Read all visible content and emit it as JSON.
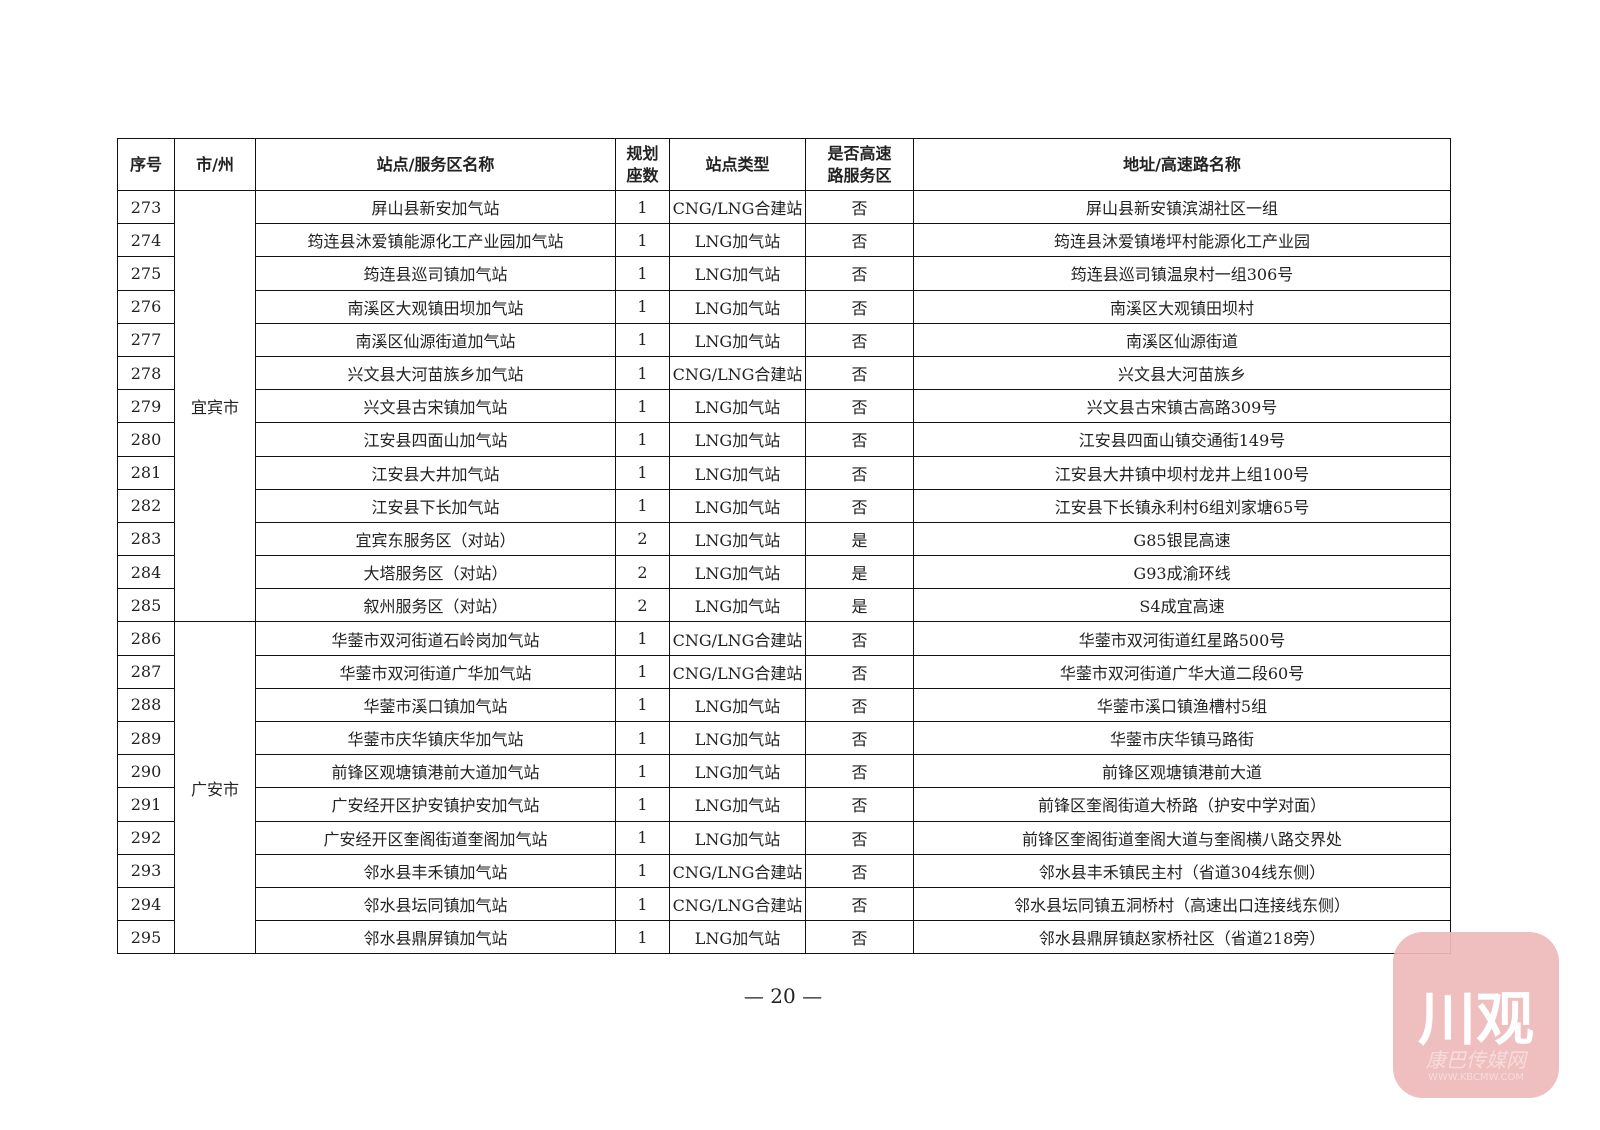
{
  "headers": [
    "序号",
    "市/州",
    "站点/服务区名称",
    "规划座数",
    "站点类型",
    "是否高速路服务区",
    "地址/高速路名称"
  ],
  "header_lines": {
    "seats": [
      "规划",
      "座数"
    ],
    "highway": [
      "是否高速",
      "路服务区"
    ]
  },
  "groups": [
    {
      "city": "宜宾市",
      "rows": [
        [
          "273",
          "屏山县新安加气站",
          "1",
          "CNG/LNG合建站",
          "否",
          "屏山县新安镇滨湖社区一组"
        ],
        [
          "274",
          "筠连县沐爱镇能源化工产业园加气站",
          "1",
          "LNG加气站",
          "否",
          "筠连县沐爱镇埢坪村能源化工产业园"
        ],
        [
          "275",
          "筠连县巡司镇加气站",
          "1",
          "LNG加气站",
          "否",
          "筠连县巡司镇温泉村一组306号"
        ],
        [
          "276",
          "南溪区大观镇田坝加气站",
          "1",
          "LNG加气站",
          "否",
          "南溪区大观镇田坝村"
        ],
        [
          "277",
          "南溪区仙源街道加气站",
          "1",
          "LNG加气站",
          "否",
          "南溪区仙源街道"
        ],
        [
          "278",
          "兴文县大河苗族乡加气站",
          "1",
          "CNG/LNG合建站",
          "否",
          "兴文县大河苗族乡"
        ],
        [
          "279",
          "兴文县古宋镇加气站",
          "1",
          "LNG加气站",
          "否",
          "兴文县古宋镇古高路309号"
        ],
        [
          "280",
          "江安县四面山加气站",
          "1",
          "LNG加气站",
          "否",
          "江安县四面山镇交通街149号"
        ],
        [
          "281",
          "江安县大井加气站",
          "1",
          "LNG加气站",
          "否",
          "江安县大井镇中坝村龙井上组100号"
        ],
        [
          "282",
          "江安县下长加气站",
          "1",
          "LNG加气站",
          "否",
          "江安县下长镇永利村6组刘家塘65号"
        ],
        [
          "283",
          "宜宾东服务区（对站）",
          "2",
          "LNG加气站",
          "是",
          "G85银昆高速"
        ],
        [
          "284",
          "大塔服务区（对站）",
          "2",
          "LNG加气站",
          "是",
          "G93成渝环线"
        ],
        [
          "285",
          "叙州服务区（对站）",
          "2",
          "LNG加气站",
          "是",
          "S4成宜高速"
        ]
      ]
    },
    {
      "city": "广安市",
      "rows": [
        [
          "286",
          "华蓥市双河街道石岭岗加气站",
          "1",
          "CNG/LNG合建站",
          "否",
          "华蓥市双河街道红星路500号"
        ],
        [
          "287",
          "华蓥市双河街道广华加气站",
          "1",
          "CNG/LNG合建站",
          "否",
          "华蓥市双河街道广华大道二段60号"
        ],
        [
          "288",
          "华蓥市溪口镇加气站",
          "1",
          "LNG加气站",
          "否",
          "华蓥市溪口镇渔槽村5组"
        ],
        [
          "289",
          "华蓥市庆华镇庆华加气站",
          "1",
          "LNG加气站",
          "否",
          "华蓥市庆华镇马路街"
        ],
        [
          "290",
          "前锋区观塘镇港前大道加气站",
          "1",
          "LNG加气站",
          "否",
          "前锋区观塘镇港前大道"
        ],
        [
          "291",
          "广安经开区护安镇护安加气站",
          "1",
          "LNG加气站",
          "否",
          "前锋区奎阁街道大桥路（护安中学对面）"
        ],
        [
          "292",
          "广安经开区奎阁街道奎阁加气站",
          "1",
          "LNG加气站",
          "否",
          "前锋区奎阁街道奎阁大道与奎阁横八路交界处"
        ],
        [
          "293",
          "邻水县丰禾镇加气站",
          "1",
          "CNG/LNG合建站",
          "否",
          "邻水县丰禾镇民主村（省道304线东侧）"
        ],
        [
          "294",
          "邻水县坛同镇加气站",
          "1",
          "CNG/LNG合建站",
          "否",
          "邻水县坛同镇五洞桥村（高速出口连接线东侧）"
        ],
        [
          "295",
          "邻水县鼎屏镇加气站",
          "1",
          "LNG加气站",
          "否",
          "邻水县鼎屏镇赵家桥社区（省道218旁）"
        ]
      ]
    }
  ],
  "page_number": "— 20 —",
  "watermark": {
    "logo": "川观",
    "sub": "康巴传媒网",
    "url": "WWW.KBCMW.COM",
    "color": "#eeb9b9"
  }
}
